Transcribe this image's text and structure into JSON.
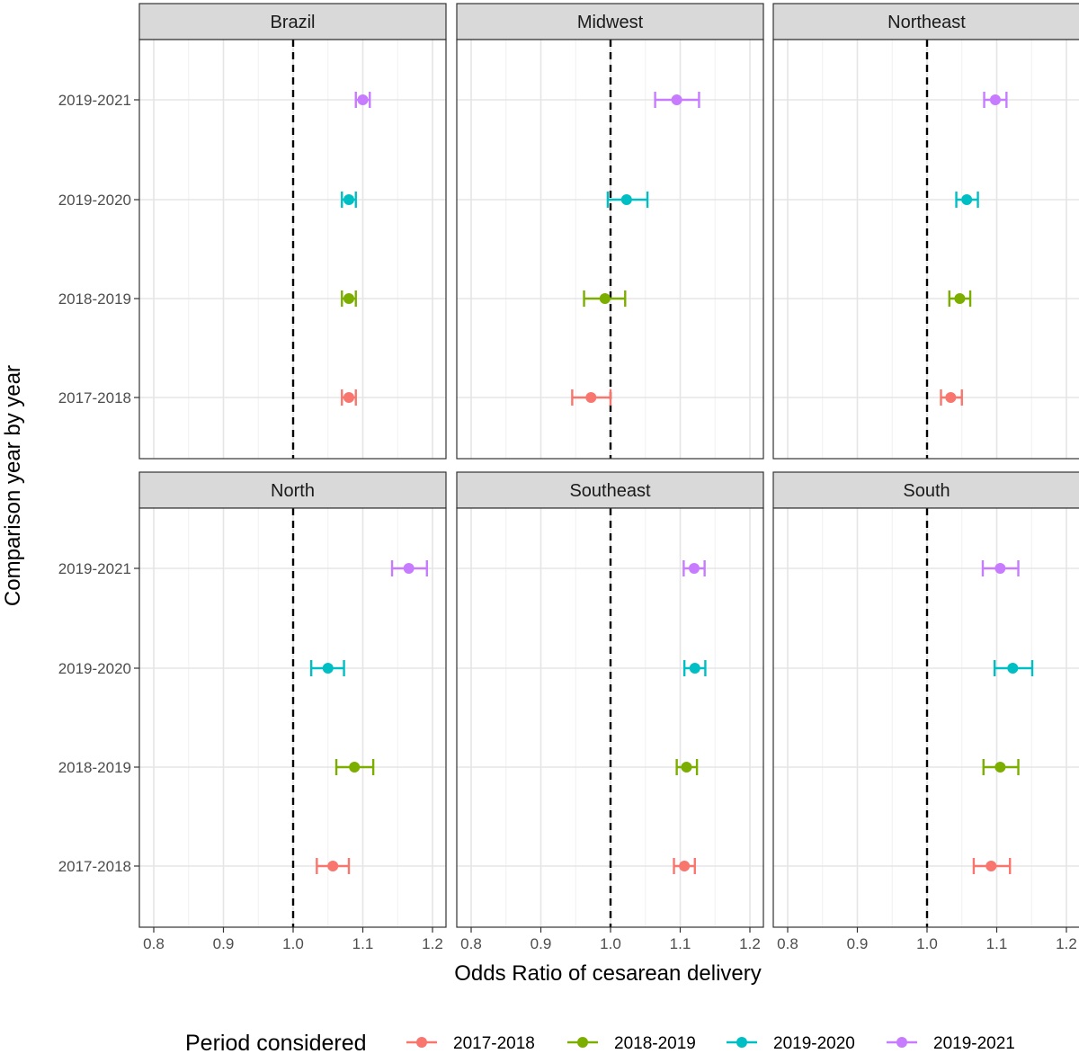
{
  "chart_data": {
    "type": "forest",
    "xlabel": "Odds Ratio of cesarean delivery",
    "ylabel": "Comparison year by year",
    "xlim": [
      0.78,
      1.22
    ],
    "xticks": [
      0.8,
      0.9,
      1.0,
      1.1,
      1.2
    ],
    "xtick_labels": [
      "0.8",
      "0.9",
      "1.0",
      "1.1",
      "1.2"
    ],
    "reference_line": 1.0,
    "categories": [
      "2017-2018",
      "2018-2019",
      "2019-2020",
      "2019-2021"
    ],
    "legend": {
      "title": "Period considered",
      "position": "bottom",
      "entries": [
        {
          "label": "2017-2018",
          "color": "#F8766D"
        },
        {
          "label": "2018-2019",
          "color": "#7CAE00"
        },
        {
          "label": "2019-2020",
          "color": "#00BFC4"
        },
        {
          "label": "2019-2021",
          "color": "#C77CFF"
        }
      ]
    },
    "panels": [
      {
        "name": "Brazil",
        "points": [
          {
            "period": "2017-2018",
            "or": 1.08,
            "lo": 1.07,
            "hi": 1.09
          },
          {
            "period": "2018-2019",
            "or": 1.08,
            "lo": 1.07,
            "hi": 1.09
          },
          {
            "period": "2019-2020",
            "or": 1.08,
            "lo": 1.07,
            "hi": 1.09
          },
          {
            "period": "2019-2021",
            "or": 1.1,
            "lo": 1.09,
            "hi": 1.11
          }
        ]
      },
      {
        "name": "Midwest",
        "points": [
          {
            "period": "2017-2018",
            "or": 0.972,
            "lo": 0.945,
            "hi": 1.0
          },
          {
            "period": "2018-2019",
            "or": 0.992,
            "lo": 0.962,
            "hi": 1.021
          },
          {
            "period": "2019-2020",
            "or": 1.023,
            "lo": 0.996,
            "hi": 1.053
          },
          {
            "period": "2019-2021",
            "or": 1.095,
            "lo": 1.064,
            "hi": 1.127
          }
        ]
      },
      {
        "name": "Northeast",
        "points": [
          {
            "period": "2017-2018",
            "or": 1.034,
            "lo": 1.02,
            "hi": 1.05
          },
          {
            "period": "2018-2019",
            "or": 1.047,
            "lo": 1.032,
            "hi": 1.062
          },
          {
            "period": "2019-2020",
            "or": 1.057,
            "lo": 1.042,
            "hi": 1.073
          },
          {
            "period": "2019-2021",
            "or": 1.098,
            "lo": 1.082,
            "hi": 1.114
          }
        ]
      },
      {
        "name": "North",
        "points": [
          {
            "period": "2017-2018",
            "or": 1.057,
            "lo": 1.034,
            "hi": 1.08
          },
          {
            "period": "2018-2019",
            "or": 1.088,
            "lo": 1.062,
            "hi": 1.115
          },
          {
            "period": "2019-2020",
            "or": 1.05,
            "lo": 1.026,
            "hi": 1.073
          },
          {
            "period": "2019-2021",
            "or": 1.166,
            "lo": 1.142,
            "hi": 1.192
          }
        ]
      },
      {
        "name": "Southeast",
        "points": [
          {
            "period": "2017-2018",
            "or": 1.106,
            "lo": 1.091,
            "hi": 1.121
          },
          {
            "period": "2018-2019",
            "or": 1.109,
            "lo": 1.095,
            "hi": 1.124
          },
          {
            "period": "2019-2020",
            "or": 1.121,
            "lo": 1.106,
            "hi": 1.136
          },
          {
            "period": "2019-2021",
            "or": 1.12,
            "lo": 1.105,
            "hi": 1.135
          }
        ]
      },
      {
        "name": "South",
        "points": [
          {
            "period": "2017-2018",
            "or": 1.092,
            "lo": 1.067,
            "hi": 1.119
          },
          {
            "period": "2018-2019",
            "or": 1.105,
            "lo": 1.081,
            "hi": 1.131
          },
          {
            "period": "2019-2020",
            "or": 1.123,
            "lo": 1.097,
            "hi": 1.151
          },
          {
            "period": "2019-2021",
            "or": 1.105,
            "lo": 1.08,
            "hi": 1.131
          }
        ]
      }
    ]
  }
}
